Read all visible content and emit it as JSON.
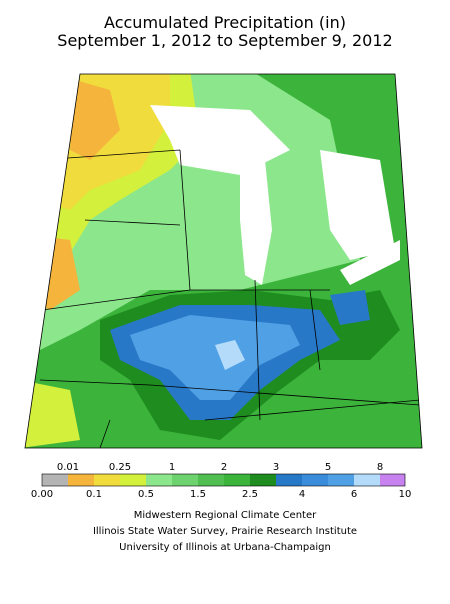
{
  "title": {
    "line1": "Accumulated Precipitation (in)",
    "line2": "September 1, 2012 to September 9, 2012"
  },
  "legend": {
    "upper_labels": [
      "0.01",
      "0.25",
      "1",
      "2",
      "3",
      "5",
      "8"
    ],
    "lower_labels": [
      "0.00",
      "0.1",
      "0.5",
      "1.5",
      "2.5",
      "4",
      "6",
      "10"
    ]
  },
  "credits": [
    "Midwestern Regional Climate Center",
    "Illinois State Water Survey, Prairie Research Institute",
    "University of Illinois at Urbana-Champaign"
  ]
}
